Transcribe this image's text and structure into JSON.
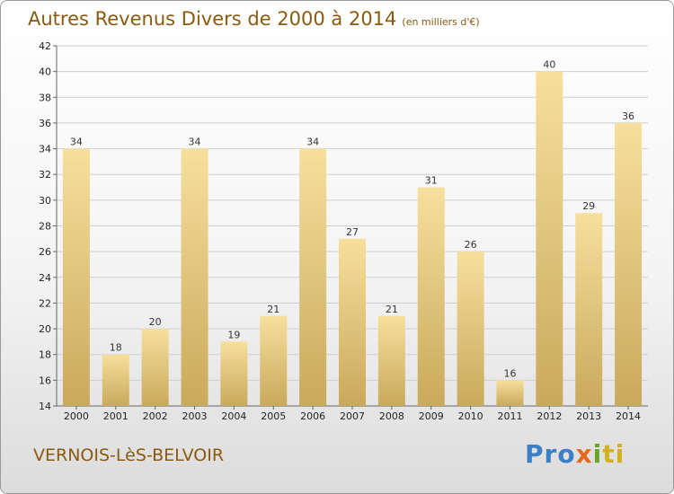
{
  "header": {
    "title": "Autres Revenus Divers de 2000 à 2014",
    "unit": "(en milliers d'€)"
  },
  "footer": {
    "commune": "VERNOIS-LèS-BELVOIR",
    "logo_parts": [
      "Pro",
      "x",
      "i",
      "ti"
    ]
  },
  "colors": {
    "bar_light": "#f7df9c",
    "bar_dark": "#c9a95c",
    "text_brown": "#8a5a10",
    "grid": "#cfcfcf"
  },
  "chart_data": {
    "type": "bar",
    "categories": [
      "2000",
      "2001",
      "2002",
      "2003",
      "2004",
      "2005",
      "2006",
      "2007",
      "2008",
      "2009",
      "2010",
      "2011",
      "2012",
      "2013",
      "2014"
    ],
    "values": [
      34,
      18,
      20,
      34,
      19,
      21,
      34,
      27,
      21,
      31,
      26,
      16,
      40,
      29,
      36
    ],
    "ylim": [
      14,
      42
    ],
    "yticks": [
      14,
      16,
      18,
      20,
      22,
      24,
      26,
      28,
      30,
      32,
      34,
      36,
      38,
      40,
      42
    ],
    "grid": true,
    "legend": "none"
  }
}
